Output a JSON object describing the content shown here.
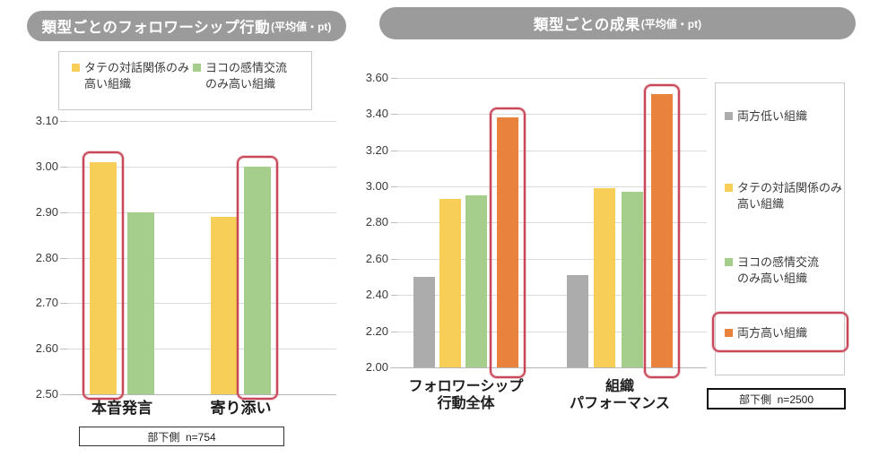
{
  "chart_data": [
    {
      "type": "bar",
      "title": "類型ごとのフォロワーシップ行動",
      "title_suffix": "(平均値・pt)",
      "categories": [
        "本音発言",
        "寄り添い"
      ],
      "series": [
        {
          "name": "タテの対話関係のみ\n高い組織",
          "color": "#f6ce58",
          "values": [
            3.01,
            2.89
          ]
        },
        {
          "name": "ヨコの感情交流\nのみ高い組織",
          "color": "#a5cd8c",
          "values": [
            2.9,
            3.0
          ]
        }
      ],
      "highlights": [
        {
          "series": 0,
          "category": 0
        },
        {
          "series": 1,
          "category": 1
        }
      ],
      "ylim": [
        2.5,
        3.1
      ],
      "ytick_step": 0.1,
      "yticks": [
        "3.10",
        "3.00",
        "2.90",
        "2.80",
        "2.70",
        "2.60",
        "2.50"
      ],
      "grid": true,
      "legend_position": "top",
      "note": "部下側  n=754"
    },
    {
      "type": "bar",
      "title": "類型ごとの成果",
      "title_suffix": "(平均値・pt)",
      "categories": [
        "フォロワーシップ\n行動全体",
        "組織\nパフォーマンス"
      ],
      "series": [
        {
          "name": "両方低い組織",
          "color": "#acacac",
          "values": [
            2.5,
            2.51
          ]
        },
        {
          "name": "タテの対話関係のみ\n高い組織",
          "color": "#f6ce58",
          "values": [
            2.93,
            2.99
          ]
        },
        {
          "name": "ヨコの感情交流\nのみ高い組織",
          "color": "#a5cd8c",
          "values": [
            2.95,
            2.97
          ]
        },
        {
          "name": "両方高い組織",
          "color": "#e8823c",
          "values": [
            3.38,
            3.51
          ]
        }
      ],
      "highlights": [
        {
          "series": 3,
          "category": 0
        },
        {
          "series": 3,
          "category": 1
        }
      ],
      "legend_highlight_series": 3,
      "ylim": [
        2.0,
        3.6
      ],
      "ytick_step": 0.2,
      "yticks": [
        "3.60",
        "3.40",
        "3.20",
        "3.00",
        "2.80",
        "2.60",
        "2.40",
        "2.20",
        "2.00"
      ],
      "grid": true,
      "legend_position": "right",
      "note": "部下側  n=2500"
    }
  ],
  "style": {
    "highlight_color": "#c8485a",
    "pill_color": "#9b9b9b",
    "grid_color": "#dbdbdb",
    "bar_yellow": "#f6ce58",
    "bar_green": "#a5cd8c",
    "bar_gray": "#acacac",
    "bar_orange": "#e8823c"
  }
}
